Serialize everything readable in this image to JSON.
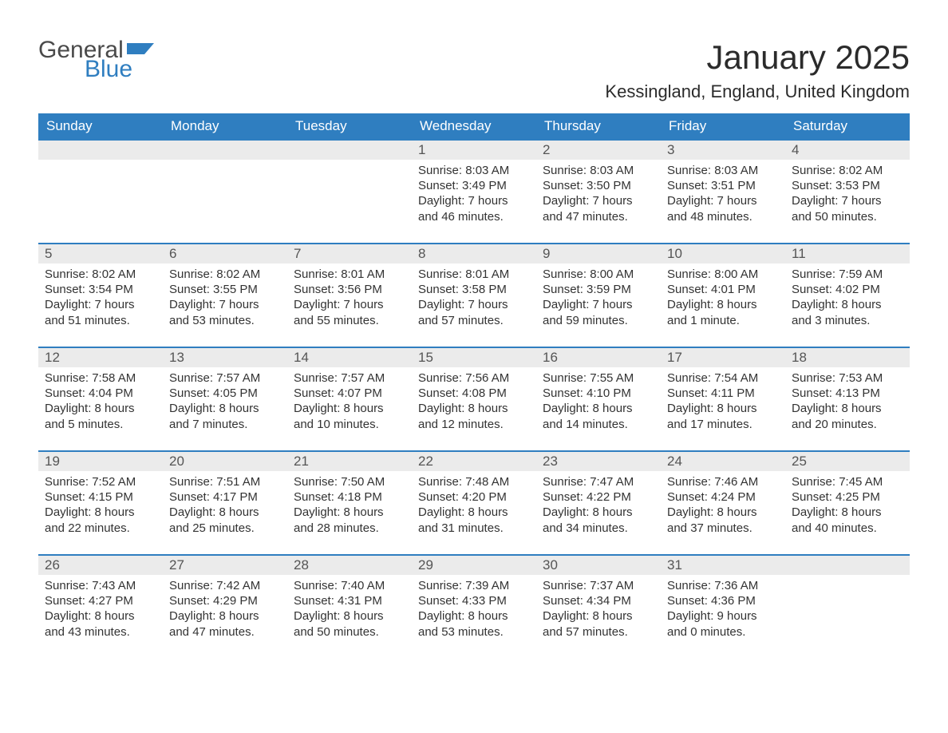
{
  "logo": {
    "word1": "General",
    "word2": "Blue",
    "flag_color": "#2f7ec0",
    "word1_color": "#4a4a4a"
  },
  "title": "January 2025",
  "location": "Kessingland, England, United Kingdom",
  "colors": {
    "header_bg": "#2f7ec0",
    "header_text": "#ffffff",
    "daynum_bg": "#ebebeb",
    "daynum_text": "#555555",
    "body_text": "#333333",
    "row_divider": "#2f7ec0",
    "page_bg": "#ffffff"
  },
  "typography": {
    "title_fontsize": 42,
    "location_fontsize": 22,
    "weekday_fontsize": 17,
    "daynum_fontsize": 17,
    "body_fontsize": 15
  },
  "layout": {
    "columns": 7,
    "rows": 5,
    "first_weekday": "Sunday"
  },
  "weekdays": [
    "Sunday",
    "Monday",
    "Tuesday",
    "Wednesday",
    "Thursday",
    "Friday",
    "Saturday"
  ],
  "weeks": [
    [
      null,
      null,
      null,
      {
        "n": "1",
        "sunrise": "Sunrise: 8:03 AM",
        "sunset": "Sunset: 3:49 PM",
        "dl1": "Daylight: 7 hours",
        "dl2": "and 46 minutes."
      },
      {
        "n": "2",
        "sunrise": "Sunrise: 8:03 AM",
        "sunset": "Sunset: 3:50 PM",
        "dl1": "Daylight: 7 hours",
        "dl2": "and 47 minutes."
      },
      {
        "n": "3",
        "sunrise": "Sunrise: 8:03 AM",
        "sunset": "Sunset: 3:51 PM",
        "dl1": "Daylight: 7 hours",
        "dl2": "and 48 minutes."
      },
      {
        "n": "4",
        "sunrise": "Sunrise: 8:02 AM",
        "sunset": "Sunset: 3:53 PM",
        "dl1": "Daylight: 7 hours",
        "dl2": "and 50 minutes."
      }
    ],
    [
      {
        "n": "5",
        "sunrise": "Sunrise: 8:02 AM",
        "sunset": "Sunset: 3:54 PM",
        "dl1": "Daylight: 7 hours",
        "dl2": "and 51 minutes."
      },
      {
        "n": "6",
        "sunrise": "Sunrise: 8:02 AM",
        "sunset": "Sunset: 3:55 PM",
        "dl1": "Daylight: 7 hours",
        "dl2": "and 53 minutes."
      },
      {
        "n": "7",
        "sunrise": "Sunrise: 8:01 AM",
        "sunset": "Sunset: 3:56 PM",
        "dl1": "Daylight: 7 hours",
        "dl2": "and 55 minutes."
      },
      {
        "n": "8",
        "sunrise": "Sunrise: 8:01 AM",
        "sunset": "Sunset: 3:58 PM",
        "dl1": "Daylight: 7 hours",
        "dl2": "and 57 minutes."
      },
      {
        "n": "9",
        "sunrise": "Sunrise: 8:00 AM",
        "sunset": "Sunset: 3:59 PM",
        "dl1": "Daylight: 7 hours",
        "dl2": "and 59 minutes."
      },
      {
        "n": "10",
        "sunrise": "Sunrise: 8:00 AM",
        "sunset": "Sunset: 4:01 PM",
        "dl1": "Daylight: 8 hours",
        "dl2": "and 1 minute."
      },
      {
        "n": "11",
        "sunrise": "Sunrise: 7:59 AM",
        "sunset": "Sunset: 4:02 PM",
        "dl1": "Daylight: 8 hours",
        "dl2": "and 3 minutes."
      }
    ],
    [
      {
        "n": "12",
        "sunrise": "Sunrise: 7:58 AM",
        "sunset": "Sunset: 4:04 PM",
        "dl1": "Daylight: 8 hours",
        "dl2": "and 5 minutes."
      },
      {
        "n": "13",
        "sunrise": "Sunrise: 7:57 AM",
        "sunset": "Sunset: 4:05 PM",
        "dl1": "Daylight: 8 hours",
        "dl2": "and 7 minutes."
      },
      {
        "n": "14",
        "sunrise": "Sunrise: 7:57 AM",
        "sunset": "Sunset: 4:07 PM",
        "dl1": "Daylight: 8 hours",
        "dl2": "and 10 minutes."
      },
      {
        "n": "15",
        "sunrise": "Sunrise: 7:56 AM",
        "sunset": "Sunset: 4:08 PM",
        "dl1": "Daylight: 8 hours",
        "dl2": "and 12 minutes."
      },
      {
        "n": "16",
        "sunrise": "Sunrise: 7:55 AM",
        "sunset": "Sunset: 4:10 PM",
        "dl1": "Daylight: 8 hours",
        "dl2": "and 14 minutes."
      },
      {
        "n": "17",
        "sunrise": "Sunrise: 7:54 AM",
        "sunset": "Sunset: 4:11 PM",
        "dl1": "Daylight: 8 hours",
        "dl2": "and 17 minutes."
      },
      {
        "n": "18",
        "sunrise": "Sunrise: 7:53 AM",
        "sunset": "Sunset: 4:13 PM",
        "dl1": "Daylight: 8 hours",
        "dl2": "and 20 minutes."
      }
    ],
    [
      {
        "n": "19",
        "sunrise": "Sunrise: 7:52 AM",
        "sunset": "Sunset: 4:15 PM",
        "dl1": "Daylight: 8 hours",
        "dl2": "and 22 minutes."
      },
      {
        "n": "20",
        "sunrise": "Sunrise: 7:51 AM",
        "sunset": "Sunset: 4:17 PM",
        "dl1": "Daylight: 8 hours",
        "dl2": "and 25 minutes."
      },
      {
        "n": "21",
        "sunrise": "Sunrise: 7:50 AM",
        "sunset": "Sunset: 4:18 PM",
        "dl1": "Daylight: 8 hours",
        "dl2": "and 28 minutes."
      },
      {
        "n": "22",
        "sunrise": "Sunrise: 7:48 AM",
        "sunset": "Sunset: 4:20 PM",
        "dl1": "Daylight: 8 hours",
        "dl2": "and 31 minutes."
      },
      {
        "n": "23",
        "sunrise": "Sunrise: 7:47 AM",
        "sunset": "Sunset: 4:22 PM",
        "dl1": "Daylight: 8 hours",
        "dl2": "and 34 minutes."
      },
      {
        "n": "24",
        "sunrise": "Sunrise: 7:46 AM",
        "sunset": "Sunset: 4:24 PM",
        "dl1": "Daylight: 8 hours",
        "dl2": "and 37 minutes."
      },
      {
        "n": "25",
        "sunrise": "Sunrise: 7:45 AM",
        "sunset": "Sunset: 4:25 PM",
        "dl1": "Daylight: 8 hours",
        "dl2": "and 40 minutes."
      }
    ],
    [
      {
        "n": "26",
        "sunrise": "Sunrise: 7:43 AM",
        "sunset": "Sunset: 4:27 PM",
        "dl1": "Daylight: 8 hours",
        "dl2": "and 43 minutes."
      },
      {
        "n": "27",
        "sunrise": "Sunrise: 7:42 AM",
        "sunset": "Sunset: 4:29 PM",
        "dl1": "Daylight: 8 hours",
        "dl2": "and 47 minutes."
      },
      {
        "n": "28",
        "sunrise": "Sunrise: 7:40 AM",
        "sunset": "Sunset: 4:31 PM",
        "dl1": "Daylight: 8 hours",
        "dl2": "and 50 minutes."
      },
      {
        "n": "29",
        "sunrise": "Sunrise: 7:39 AM",
        "sunset": "Sunset: 4:33 PM",
        "dl1": "Daylight: 8 hours",
        "dl2": "and 53 minutes."
      },
      {
        "n": "30",
        "sunrise": "Sunrise: 7:37 AM",
        "sunset": "Sunset: 4:34 PM",
        "dl1": "Daylight: 8 hours",
        "dl2": "and 57 minutes."
      },
      {
        "n": "31",
        "sunrise": "Sunrise: 7:36 AM",
        "sunset": "Sunset: 4:36 PM",
        "dl1": "Daylight: 9 hours",
        "dl2": "and 0 minutes."
      },
      null
    ]
  ]
}
